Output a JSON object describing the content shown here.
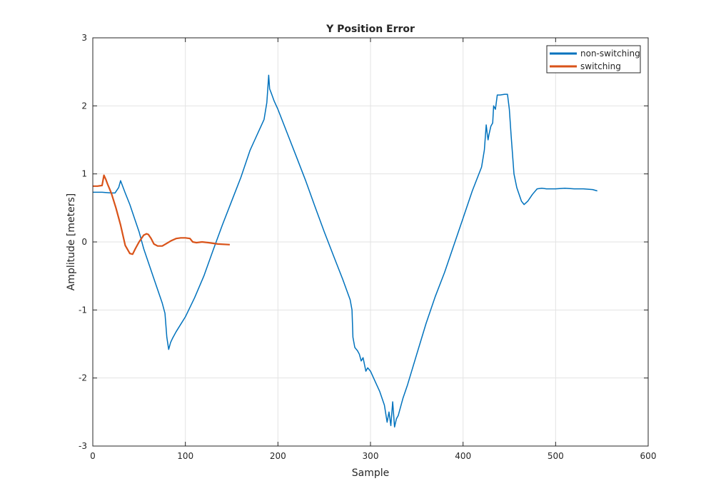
{
  "chart_data": {
    "type": "line",
    "title": "Y Position Error",
    "xlabel": "Sample",
    "ylabel": "Amplitude [meters]",
    "xlim": [
      0,
      600
    ],
    "ylim": [
      -3,
      3
    ],
    "xticks": [
      0,
      100,
      200,
      300,
      400,
      500,
      600
    ],
    "yticks": [
      -3,
      -2,
      -1,
      0,
      1,
      2,
      3
    ],
    "grid": true,
    "legend_position": "top-right",
    "series": [
      {
        "name": "non-switching",
        "color": "#0072BD",
        "x": [
          0,
          10,
          20,
          24,
          28,
          30,
          35,
          40,
          45,
          50,
          55,
          60,
          65,
          70,
          75,
          78,
          80,
          82,
          84,
          86,
          90,
          100,
          110,
          120,
          130,
          140,
          150,
          160,
          170,
          175,
          180,
          185,
          188,
          190,
          191,
          193,
          196,
          200,
          210,
          220,
          230,
          240,
          250,
          260,
          270,
          278,
          280,
          281,
          283,
          286,
          288,
          290,
          292,
          295,
          297,
          300,
          305,
          310,
          315,
          318,
          320,
          322,
          324,
          326,
          328,
          330,
          335,
          340,
          350,
          360,
          370,
          380,
          390,
          400,
          410,
          420,
          423,
          425,
          426,
          427,
          428,
          430,
          432,
          433,
          435,
          437,
          440,
          445,
          448,
          450,
          452,
          455,
          458,
          460,
          463,
          466,
          470,
          475,
          480,
          485,
          490,
          500,
          510,
          520,
          530,
          540,
          545
        ],
        "y": [
          0.73,
          0.73,
          0.72,
          0.72,
          0.8,
          0.9,
          0.72,
          0.55,
          0.35,
          0.15,
          -0.1,
          -0.3,
          -0.5,
          -0.7,
          -0.9,
          -1.05,
          -1.4,
          -1.58,
          -1.48,
          -1.42,
          -1.32,
          -1.1,
          -0.82,
          -0.5,
          -0.12,
          0.25,
          0.6,
          0.95,
          1.35,
          1.5,
          1.65,
          1.8,
          2.05,
          2.45,
          2.25,
          2.18,
          2.07,
          1.95,
          1.6,
          1.25,
          0.9,
          0.52,
          0.15,
          -0.2,
          -0.55,
          -0.85,
          -1.0,
          -1.4,
          -1.55,
          -1.6,
          -1.65,
          -1.75,
          -1.7,
          -1.9,
          -1.85,
          -1.9,
          -2.05,
          -2.2,
          -2.4,
          -2.65,
          -2.5,
          -2.7,
          -2.35,
          -2.72,
          -2.6,
          -2.55,
          -2.3,
          -2.1,
          -1.65,
          -1.2,
          -0.8,
          -0.45,
          -0.05,
          0.35,
          0.75,
          1.1,
          1.35,
          1.72,
          1.6,
          1.5,
          1.58,
          1.7,
          1.75,
          2.0,
          1.95,
          2.16,
          2.16,
          2.17,
          2.17,
          1.95,
          1.55,
          1.0,
          0.8,
          0.72,
          0.6,
          0.55,
          0.6,
          0.7,
          0.78,
          0.79,
          0.78,
          0.78,
          0.79,
          0.78,
          0.78,
          0.77,
          0.75
        ]
      },
      {
        "name": "switching",
        "color": "#D95319",
        "x": [
          0,
          5,
          10,
          12,
          14,
          16,
          20,
          25,
          30,
          35,
          40,
          43,
          46,
          50,
          55,
          58,
          60,
          63,
          66,
          70,
          75,
          80,
          85,
          90,
          95,
          100,
          105,
          108,
          112,
          118,
          125,
          135,
          148
        ],
        "y": [
          0.82,
          0.82,
          0.83,
          0.98,
          0.92,
          0.85,
          0.72,
          0.5,
          0.25,
          -0.05,
          -0.17,
          -0.18,
          -0.1,
          0.0,
          0.1,
          0.12,
          0.11,
          0.05,
          -0.03,
          -0.06,
          -0.06,
          -0.02,
          0.02,
          0.05,
          0.06,
          0.06,
          0.05,
          0.0,
          -0.01,
          0.0,
          -0.01,
          -0.03,
          -0.04
        ]
      }
    ]
  }
}
